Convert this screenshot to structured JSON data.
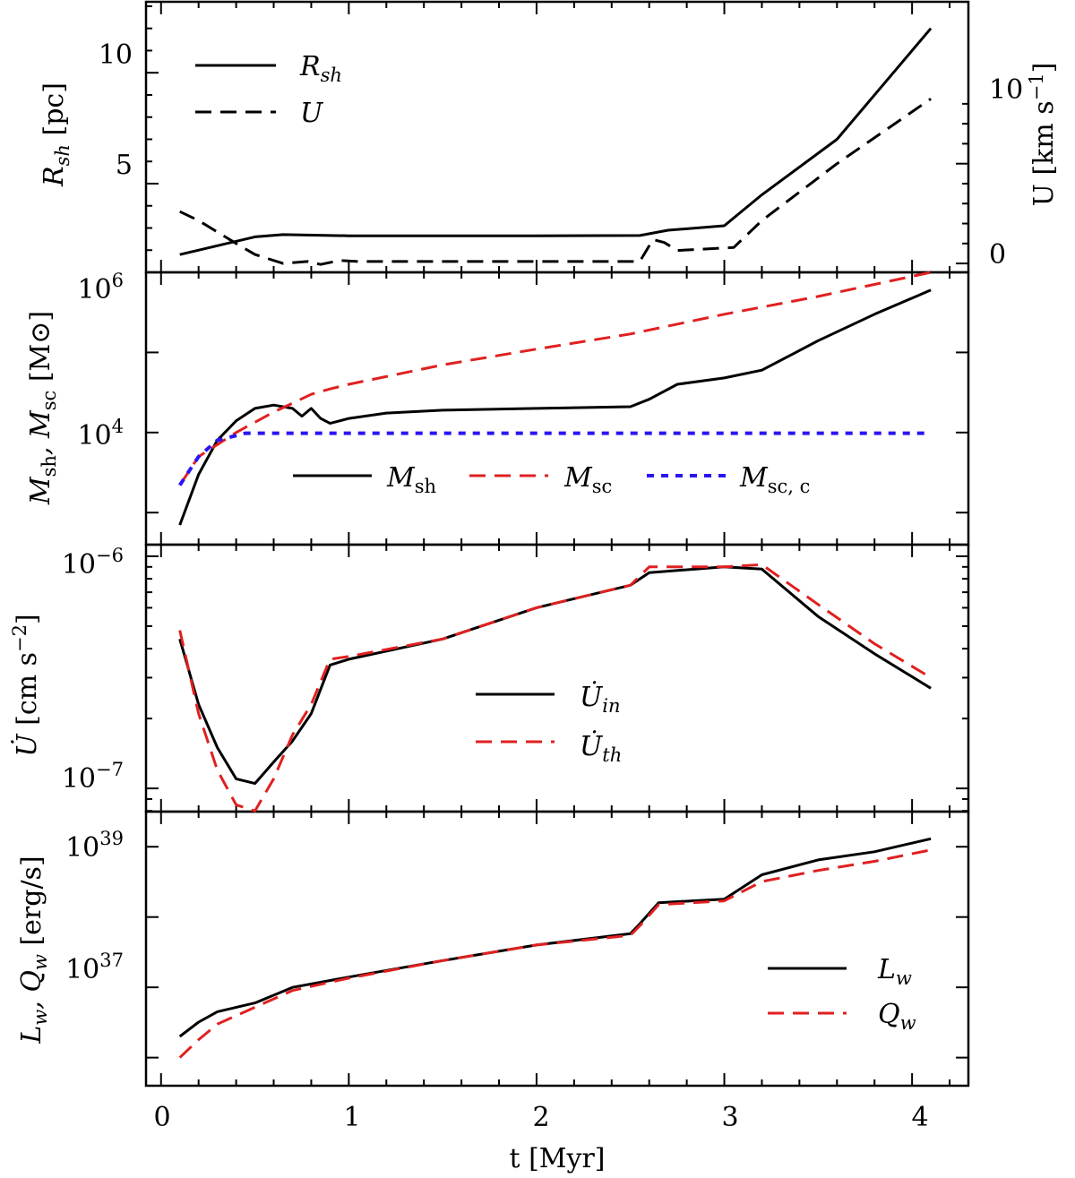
{
  "colors": {
    "black": "#000000",
    "red": "#e02020",
    "blue": "#2b14f2"
  },
  "chart_data": [
    {
      "type": "line",
      "panel": "top",
      "xlim": [
        -0.08,
        4.3
      ],
      "ylim": [
        1.0,
        13.2
      ],
      "xticks": [
        0,
        1,
        2,
        3,
        4
      ],
      "yticks_left": [
        {
          "value": 5,
          "label": "5"
        },
        {
          "value": 10,
          "label": "10"
        }
      ],
      "ylabel_left": "R_sh [pc]",
      "ylabel_right": "U [km s^-1]",
      "yticks_right": [
        {
          "value": 0,
          "label": "0"
        },
        {
          "value": 10,
          "label": "10"
        }
      ],
      "right_axis_map": {
        "u0_left": 1.4,
        "u_scale": 0.45
      },
      "legend": {
        "position": "top-left",
        "entries": [
          "R_sh",
          "U"
        ]
      },
      "series": [
        {
          "name": "R_sh",
          "style": "solid",
          "color": "#000000",
          "x": [
            0.1,
            0.3,
            0.5,
            0.65,
            1.0,
            2.0,
            2.55,
            2.7,
            3.0,
            3.2,
            3.6,
            3.9,
            4.1
          ],
          "y": [
            1.8,
            2.2,
            2.6,
            2.7,
            2.65,
            2.65,
            2.66,
            2.9,
            3.1,
            4.5,
            7.0,
            10.0,
            12.0
          ]
        },
        {
          "name": "U",
          "style": "dashed",
          "color": "#000000",
          "x": [
            0.1,
            0.2,
            0.4,
            0.5,
            0.65,
            0.78,
            0.85,
            0.95,
            1.05,
            2.0,
            2.55,
            2.62,
            2.68,
            2.75,
            3.05,
            3.2,
            3.6,
            4.1
          ],
          "y": [
            5.2,
            4.3,
            2.0,
            0.9,
            0.0,
            0.2,
            -0.1,
            0.3,
            0.2,
            0.2,
            0.2,
            2.4,
            2.1,
            1.3,
            1.6,
            4.3,
            10.0,
            16.5
          ]
        }
      ]
    },
    {
      "type": "line",
      "panel": "mass",
      "yscale": "log",
      "xlim": [
        -0.08,
        4.3
      ],
      "ylim_log10": [
        2.6,
        6.0
      ],
      "yticks": [
        {
          "value": "1e4",
          "label": "10^4"
        },
        {
          "value": "1e6",
          "label": "10^6"
        }
      ],
      "ylabel": "M_sh, M_sc [M☉]",
      "legend": {
        "position": "lower-center",
        "entries": [
          "M_sh",
          "M_sc",
          "M_sc,c"
        ]
      },
      "series": [
        {
          "name": "M_sh",
          "style": "solid",
          "color": "#000000",
          "x": [
            0.1,
            0.2,
            0.3,
            0.4,
            0.5,
            0.6,
            0.7,
            0.75,
            0.8,
            0.85,
            0.9,
            1.0,
            1.2,
            1.5,
            2.0,
            2.5,
            2.6,
            2.75,
            3.0,
            3.2,
            3.5,
            3.8,
            4.1
          ],
          "x_note": "M_sh zigzag region approximated",
          "y": [
            700,
            3000,
            8000,
            14000,
            20000,
            22000,
            20000,
            16000,
            20000,
            15000,
            13000,
            15000,
            17500,
            19000,
            20000,
            21000,
            26000,
            40000,
            48000,
            60000,
            140000,
            300000,
            600000
          ]
        },
        {
          "name": "M_sc",
          "style": "dashed",
          "color": "#e02020",
          "x": [
            0.1,
            0.2,
            0.4,
            0.6,
            0.8,
            0.9,
            1.0,
            1.5,
            2.0,
            2.5,
            3.0,
            3.5,
            4.1
          ],
          "y": [
            2200,
            5000,
            10000,
            18000,
            30000,
            35000,
            40000,
            70000,
            110000,
            170000,
            300000,
            500000,
            1000000
          ]
        },
        {
          "name": "M_sc,c",
          "style": "dotted",
          "color": "#2b14f2",
          "x": [
            0.1,
            0.2,
            0.3,
            0.45,
            1.0,
            2.0,
            3.0,
            4.1
          ],
          "y": [
            2200,
            5000,
            8000,
            9800,
            9800,
            9800,
            9800,
            9800
          ]
        }
      ]
    },
    {
      "type": "line",
      "panel": "accel",
      "yscale": "log",
      "xlim": [
        -0.08,
        4.3
      ],
      "ylim_log10": [
        -7.1,
        -5.95
      ],
      "yticks": [
        {
          "value": "1e-7",
          "label": "10^-7"
        },
        {
          "value": "1e-6",
          "label": "10^-6"
        }
      ],
      "ylabel": "U̇ [cm s^-2]",
      "legend": {
        "position": "center",
        "entries": [
          "U̇_in",
          "U̇_th"
        ]
      },
      "series": [
        {
          "name": "U̇_in",
          "style": "solid",
          "color": "#000000",
          "x": [
            0.1,
            0.2,
            0.3,
            0.4,
            0.5,
            0.6,
            0.7,
            0.8,
            0.9,
            1.0,
            1.5,
            2.0,
            2.5,
            2.6,
            3.0,
            3.2,
            3.5,
            3.8,
            4.1
          ],
          "y": [
            4.4e-07,
            2.3e-07,
            1.5e-07,
            1.1e-07,
            1.05e-07,
            1.3e-07,
            1.6e-07,
            2.1e-07,
            3.4e-07,
            3.6e-07,
            4.4e-07,
            6e-07,
            7.5e-07,
            8.5e-07,
            9e-07,
            8.8e-07,
            5.5e-07,
            3.8e-07,
            2.7e-07
          ]
        },
        {
          "name": "U̇_th",
          "style": "dashed",
          "color": "#e02020",
          "x": [
            0.1,
            0.2,
            0.3,
            0.4,
            0.5,
            0.6,
            0.7,
            0.8,
            0.9,
            1.0,
            1.5,
            2.0,
            2.5,
            2.6,
            3.0,
            3.2,
            3.5,
            3.8,
            4.1
          ],
          "y": [
            4.8e-07,
            2.1e-07,
            1.2e-07,
            8.5e-08,
            8e-08,
            1.1e-07,
            1.7e-07,
            2.3e-07,
            3.6e-07,
            3.7e-07,
            4.4e-07,
            6e-07,
            7.5e-07,
            9e-07,
            9e-07,
            9.2e-07,
            6.2e-07,
            4.2e-07,
            3e-07
          ]
        }
      ]
    },
    {
      "type": "line",
      "panel": "luminosity",
      "yscale": "log",
      "xlim": [
        -0.08,
        4.3
      ],
      "ylim_log10": [
        35.6,
        39.5
      ],
      "yticks": [
        {
          "value": "1e37",
          "label": "10^37"
        },
        {
          "value": "1e39",
          "label": "10^39"
        }
      ],
      "ylabel": "L_w, Q_w [erg/s]",
      "xlabel": "t [Myr]",
      "legend": {
        "position": "lower-right",
        "entries": [
          "L_w",
          "Q_w"
        ]
      },
      "series": [
        {
          "name": "L_w",
          "style": "solid",
          "color": "#000000",
          "x": [
            0.1,
            0.2,
            0.3,
            0.5,
            0.7,
            1.0,
            1.5,
            2.0,
            2.5,
            2.55,
            2.65,
            3.0,
            3.2,
            3.5,
            3.8,
            4.1
          ],
          "y": [
            2e+36,
            3.2e+36,
            4.5e+36,
            6e+36,
            1e+37,
            1.4e+37,
            2.4e+37,
            4e+37,
            5.8e+37,
            8e+37,
            1.6e+38,
            1.8e+38,
            4e+38,
            6.5e+38,
            8.5e+38,
            1.3e+39
          ]
        },
        {
          "name": "Q_w",
          "style": "dashed",
          "color": "#e02020",
          "x": [
            0.1,
            0.2,
            0.3,
            0.5,
            0.7,
            1.0,
            1.5,
            2.0,
            2.5,
            2.55,
            2.65,
            3.0,
            3.2,
            3.5,
            3.8,
            4.1
          ],
          "y": [
            1e+36,
            1.8e+36,
            3e+36,
            5.2e+36,
            9e+36,
            1.35e+37,
            2.4e+37,
            4e+37,
            5.5e+37,
            7.5e+37,
            1.5e+38,
            1.7e+38,
            3.2e+38,
            4.6e+38,
            6.2e+38,
            9e+38
          ]
        }
      ]
    }
  ],
  "text": {
    "xtick_labels": [
      "0",
      "1",
      "2",
      "3",
      "4"
    ],
    "xlabel": "t [Myr]",
    "p1_ylabel": "R",
    "p1_ylabel_sub": "sh",
    "p1_ylabel_unit": "[pc]",
    "p1_ylabel_right": "U [km s",
    "p1_ylabel_right_exp": "−1",
    "p1_ylabel_right_end": "]",
    "p2_ylabel": "M",
    "p2_ylabel_sub1": "sh",
    "p2_ylabel_mid": ", M",
    "p2_ylabel_sub2": "sc",
    "p2_ylabel_unit": "[M⊙]",
    "p3_ylabel": "U̇",
    "p3_ylabel_unit": "[cm s",
    "p3_ylabel_exp": "−2",
    "p3_ylabel_end": "]",
    "p4_ylabel": "L",
    "p4_ylabel_sub1": "w",
    "p4_ylabel_mid": ", Q",
    "p4_ylabel_sub2": "w",
    "p4_ylabel_unit": "[erg/s]",
    "legend_Rsh": "R",
    "legend_Rsh_sub": "sh",
    "legend_U": "U",
    "legend_Msh": "M",
    "legend_Msh_sub": "sh",
    "legend_Msc": "M",
    "legend_Msc_sub": "sc",
    "legend_Mscc": "M",
    "legend_Mscc_sub": "sc, c",
    "legend_Uin": "U̇",
    "legend_Uin_sub": "in",
    "legend_Uth": "U̇",
    "legend_Uth_sub": "th",
    "legend_Lw": "L",
    "legend_Lw_sub": "w",
    "legend_Qw": "Q",
    "legend_Qw_sub": "w",
    "p1_yt5": "5",
    "p1_yt10": "10",
    "p1_yr0": "0",
    "p1_yr10": "10",
    "p2_yt4_base": "10",
    "p2_yt4_exp": "4",
    "p2_yt6_base": "10",
    "p2_yt6_exp": "6",
    "p3_yt7_base": "10",
    "p3_yt7_exp": "−7",
    "p3_yt6_base": "10",
    "p3_yt6_exp": "−6",
    "p4_yt37_base": "10",
    "p4_yt37_exp": "37",
    "p4_yt39_base": "10",
    "p4_yt39_exp": "39"
  }
}
